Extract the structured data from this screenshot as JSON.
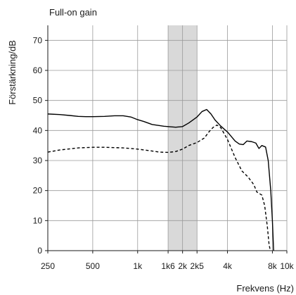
{
  "chart_data": {
    "type": "line",
    "title": "Full-on gain",
    "xlabel": "Frekvens (Hz)",
    "ylabel": "Förstärkning/dB",
    "x_scale": "log",
    "xlim": [
      250,
      10000
    ],
    "ylim": [
      0,
      75
    ],
    "x_ticks": [
      {
        "value": 250,
        "label": "250"
      },
      {
        "value": 500,
        "label": "500"
      },
      {
        "value": 1000,
        "label": "1k"
      },
      {
        "value": 1600,
        "label": "1k6"
      },
      {
        "value": 2000,
        "label": "2k"
      },
      {
        "value": 2500,
        "label": "2k5"
      },
      {
        "value": 4000,
        "label": "4k"
      },
      {
        "value": 8000,
        "label": "8k"
      },
      {
        "value": 10000,
        "label": "10k"
      }
    ],
    "y_ticks": [
      {
        "value": 0,
        "label": "0"
      },
      {
        "value": 10,
        "label": "10"
      },
      {
        "value": 20,
        "label": "20"
      },
      {
        "value": 30,
        "label": "30"
      },
      {
        "value": 40,
        "label": "40"
      },
      {
        "value": 50,
        "label": "50"
      },
      {
        "value": 60,
        "label": "60"
      },
      {
        "value": 70,
        "label": "70"
      }
    ],
    "shaded_band": {
      "x_from": 1600,
      "x_to": 2500,
      "color": "#d9d9d9"
    },
    "grid": true,
    "series": [
      {
        "style": "solid",
        "color": "#000000",
        "points": [
          [
            250,
            45.5
          ],
          [
            300,
            45.3
          ],
          [
            350,
            45.0
          ],
          [
            400,
            44.7
          ],
          [
            450,
            44.6
          ],
          [
            500,
            44.6
          ],
          [
            600,
            44.7
          ],
          [
            700,
            44.9
          ],
          [
            800,
            44.9
          ],
          [
            900,
            44.5
          ],
          [
            1000,
            43.6
          ],
          [
            1100,
            43.0
          ],
          [
            1250,
            42.0
          ],
          [
            1500,
            41.4
          ],
          [
            1800,
            41.1
          ],
          [
            2000,
            41.3
          ],
          [
            2200,
            42.5
          ],
          [
            2500,
            44.5
          ],
          [
            2700,
            46.3
          ],
          [
            2900,
            47.0
          ],
          [
            3100,
            45.5
          ],
          [
            3300,
            43.5
          ],
          [
            3600,
            41.5
          ],
          [
            4000,
            39.5
          ],
          [
            4500,
            36.5
          ],
          [
            4800,
            35.5
          ],
          [
            5100,
            35.3
          ],
          [
            5400,
            36.5
          ],
          [
            5800,
            36.3
          ],
          [
            6200,
            35.8
          ],
          [
            6500,
            34.0
          ],
          [
            6800,
            35.0
          ],
          [
            7200,
            34.5
          ],
          [
            7500,
            30.0
          ],
          [
            7800,
            20.0
          ],
          [
            8000,
            10.0
          ],
          [
            8150,
            0
          ]
        ]
      },
      {
        "style": "dashed",
        "color": "#000000",
        "points": [
          [
            250,
            32.8
          ],
          [
            300,
            33.5
          ],
          [
            400,
            34.2
          ],
          [
            500,
            34.4
          ],
          [
            600,
            34.4
          ],
          [
            700,
            34.3
          ],
          [
            800,
            34.2
          ],
          [
            900,
            34.0
          ],
          [
            1000,
            33.8
          ],
          [
            1200,
            33.3
          ],
          [
            1400,
            32.8
          ],
          [
            1600,
            32.7
          ],
          [
            1800,
            33.0
          ],
          [
            2000,
            33.8
          ],
          [
            2200,
            35.0
          ],
          [
            2500,
            36.0
          ],
          [
            2800,
            37.5
          ],
          [
            3000,
            39.5
          ],
          [
            3200,
            41.0
          ],
          [
            3400,
            41.8
          ],
          [
            3600,
            41.0
          ],
          [
            4000,
            37.0
          ],
          [
            4500,
            31.0
          ],
          [
            5000,
            26.5
          ],
          [
            5500,
            24.5
          ],
          [
            6000,
            22.0
          ],
          [
            6300,
            19.5
          ],
          [
            6800,
            18.5
          ],
          [
            7100,
            15.0
          ],
          [
            7400,
            8.0
          ],
          [
            7600,
            2.0
          ],
          [
            7750,
            0
          ]
        ]
      }
    ]
  }
}
